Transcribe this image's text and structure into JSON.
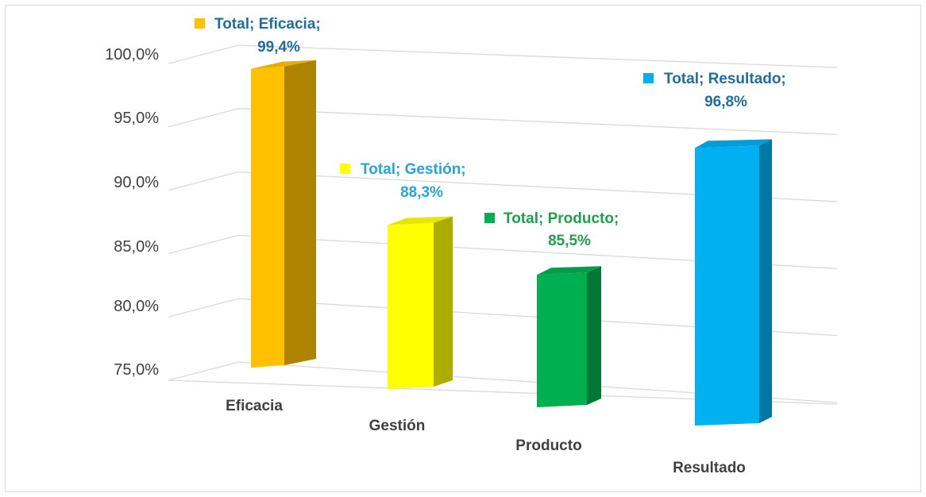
{
  "chart_data": {
    "type": "bar",
    "categories": [
      "Eficacia",
      "Gestión",
      "Producto",
      "Resultado"
    ],
    "values": [
      99.4,
      88.3,
      85.5,
      96.8
    ],
    "y_ticks": [
      "75,0%",
      "80,0%",
      "85,0%",
      "90,0%",
      "95,0%",
      "100,0%"
    ],
    "ylim": [
      75,
      100
    ],
    "grid": true,
    "projection": "3d-perspective",
    "data_labels": [
      {
        "line1": "Total; Eficacia;",
        "line2": "99,4%"
      },
      {
        "line1": "Total; Gestión;",
        "line2": "88,3%"
      },
      {
        "line1": "Total; Producto;",
        "line2": "85,5%"
      },
      {
        "line1": "Total; Resultado;",
        "line2": "96,8%"
      }
    ],
    "colors": {
      "bars": [
        "#FFC000",
        "#FFFF00",
        "#00B050",
        "#00B0F0"
      ],
      "labels": [
        "#1F6E9E",
        "#2AA4D8",
        "#1FA04A",
        "#1F6E9E"
      ]
    }
  }
}
